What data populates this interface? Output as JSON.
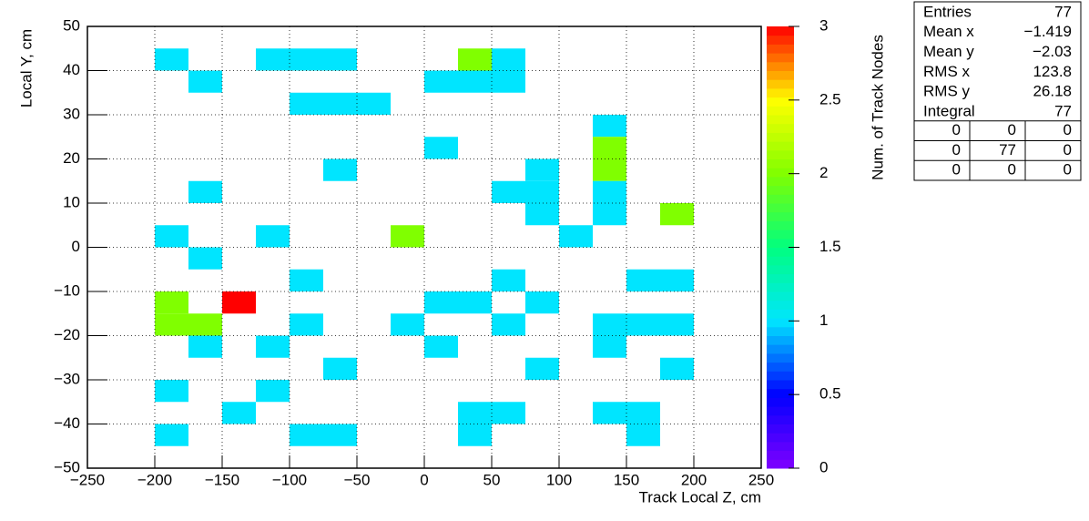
{
  "chart_data": {
    "type": "heatmap",
    "x_label": "Track Local Z, cm",
    "y_label": "Local Y, cm",
    "z_label": "Num. of Track Nodes",
    "xbins": [
      -250,
      -225,
      -200,
      -175,
      -150,
      -125,
      -100,
      -75,
      -50,
      -25,
      0,
      25,
      50,
      75,
      100,
      125,
      150,
      175,
      200,
      225,
      250
    ],
    "ybins": [
      -50,
      -45,
      -40,
      -35,
      -30,
      -25,
      -20,
      -15,
      -10,
      -5,
      0,
      5,
      10,
      15,
      20,
      25,
      30,
      35,
      40,
      45,
      50
    ],
    "x": [
      -200,
      -125,
      -100,
      -75,
      25,
      50,
      -175,
      0,
      25,
      50,
      -100,
      -75,
      -50,
      125,
      0,
      125,
      -75,
      75,
      125,
      -175,
      50,
      75,
      125,
      75,
      125,
      175,
      -200,
      -125,
      -25,
      100,
      -175,
      -100,
      50,
      150,
      175,
      -200,
      -150,
      0,
      25,
      75,
      -200,
      -175,
      -100,
      -25,
      50,
      125,
      150,
      175,
      -175,
      -125,
      0,
      125,
      -75,
      75,
      175,
      -200,
      -125,
      -150,
      25,
      50,
      125,
      150,
      -200,
      -100,
      -75,
      25,
      150
    ],
    "y": [
      40,
      40,
      40,
      40,
      40,
      40,
      35,
      35,
      35,
      35,
      30,
      30,
      30,
      25,
      20,
      20,
      15,
      15,
      15,
      10,
      10,
      10,
      10,
      5,
      5,
      5,
      0,
      0,
      0,
      0,
      -5,
      -10,
      -10,
      -10,
      -10,
      -15,
      -15,
      -15,
      -15,
      -15,
      -20,
      -20,
      -20,
      -20,
      -20,
      -20,
      -20,
      -20,
      -25,
      -25,
      -25,
      -25,
      -30,
      -30,
      -30,
      -35,
      -35,
      -40,
      -40,
      -40,
      -40,
      -40,
      -45,
      -45,
      -45,
      -45,
      -45
    ],
    "values": [
      1,
      1,
      1,
      1,
      2,
      1,
      1,
      1,
      1,
      1,
      1,
      1,
      1,
      1,
      1,
      2,
      1,
      1,
      2,
      1,
      1,
      1,
      1,
      1,
      1,
      2,
      1,
      1,
      2,
      1,
      1,
      1,
      1,
      1,
      1,
      2,
      3,
      1,
      1,
      1,
      2,
      2,
      1,
      1,
      1,
      1,
      1,
      1,
      1,
      1,
      1,
      1,
      1,
      1,
      1,
      1,
      1,
      1,
      1,
      1,
      1,
      1,
      1,
      1,
      1,
      1,
      1
    ],
    "xlim": [
      -250,
      250
    ],
    "xticks": [
      {
        "value": -250,
        "label": "−250"
      },
      {
        "value": -200,
        "label": "−200"
      },
      {
        "value": -150,
        "label": "−150"
      },
      {
        "value": -100,
        "label": "−100"
      },
      {
        "value": -50,
        "label": "−50"
      },
      0,
      50,
      100,
      150,
      200,
      250
    ],
    "ylim": [
      -50,
      50
    ],
    "yticks": [
      {
        "value": -50,
        "label": "−50"
      },
      {
        "value": -40,
        "label": "−40"
      },
      {
        "value": -30,
        "label": "−30"
      },
      {
        "value": -20,
        "label": "−20"
      },
      {
        "value": -10,
        "label": "−10"
      },
      0,
      10,
      20,
      30,
      40,
      50
    ],
    "zlim": [
      0,
      3
    ],
    "zticks": [
      0,
      0.5,
      1,
      1.5,
      2,
      2.5,
      3
    ],
    "colorscale": [
      "#8000ff",
      "#0000ff",
      "#00e5ff",
      "#00ff80",
      "#80ff00",
      "#ffff00",
      "#ff0000"
    ],
    "grid": true,
    "stats": [
      {
        "label": "Entries",
        "value": "77"
      },
      {
        "label": "Mean x",
        "value": "−1.419"
      },
      {
        "label": "Mean y",
        "value": "−2.03"
      },
      {
        "label": "RMS x",
        "value": "123.8"
      },
      {
        "label": "RMS y",
        "value": "26.18"
      },
      {
        "label": "Integral",
        "value": "77"
      }
    ],
    "overflow": [
      [
        "0",
        "0",
        "0"
      ],
      [
        "0",
        "77",
        "0"
      ],
      [
        "0",
        "0",
        "0"
      ]
    ]
  }
}
